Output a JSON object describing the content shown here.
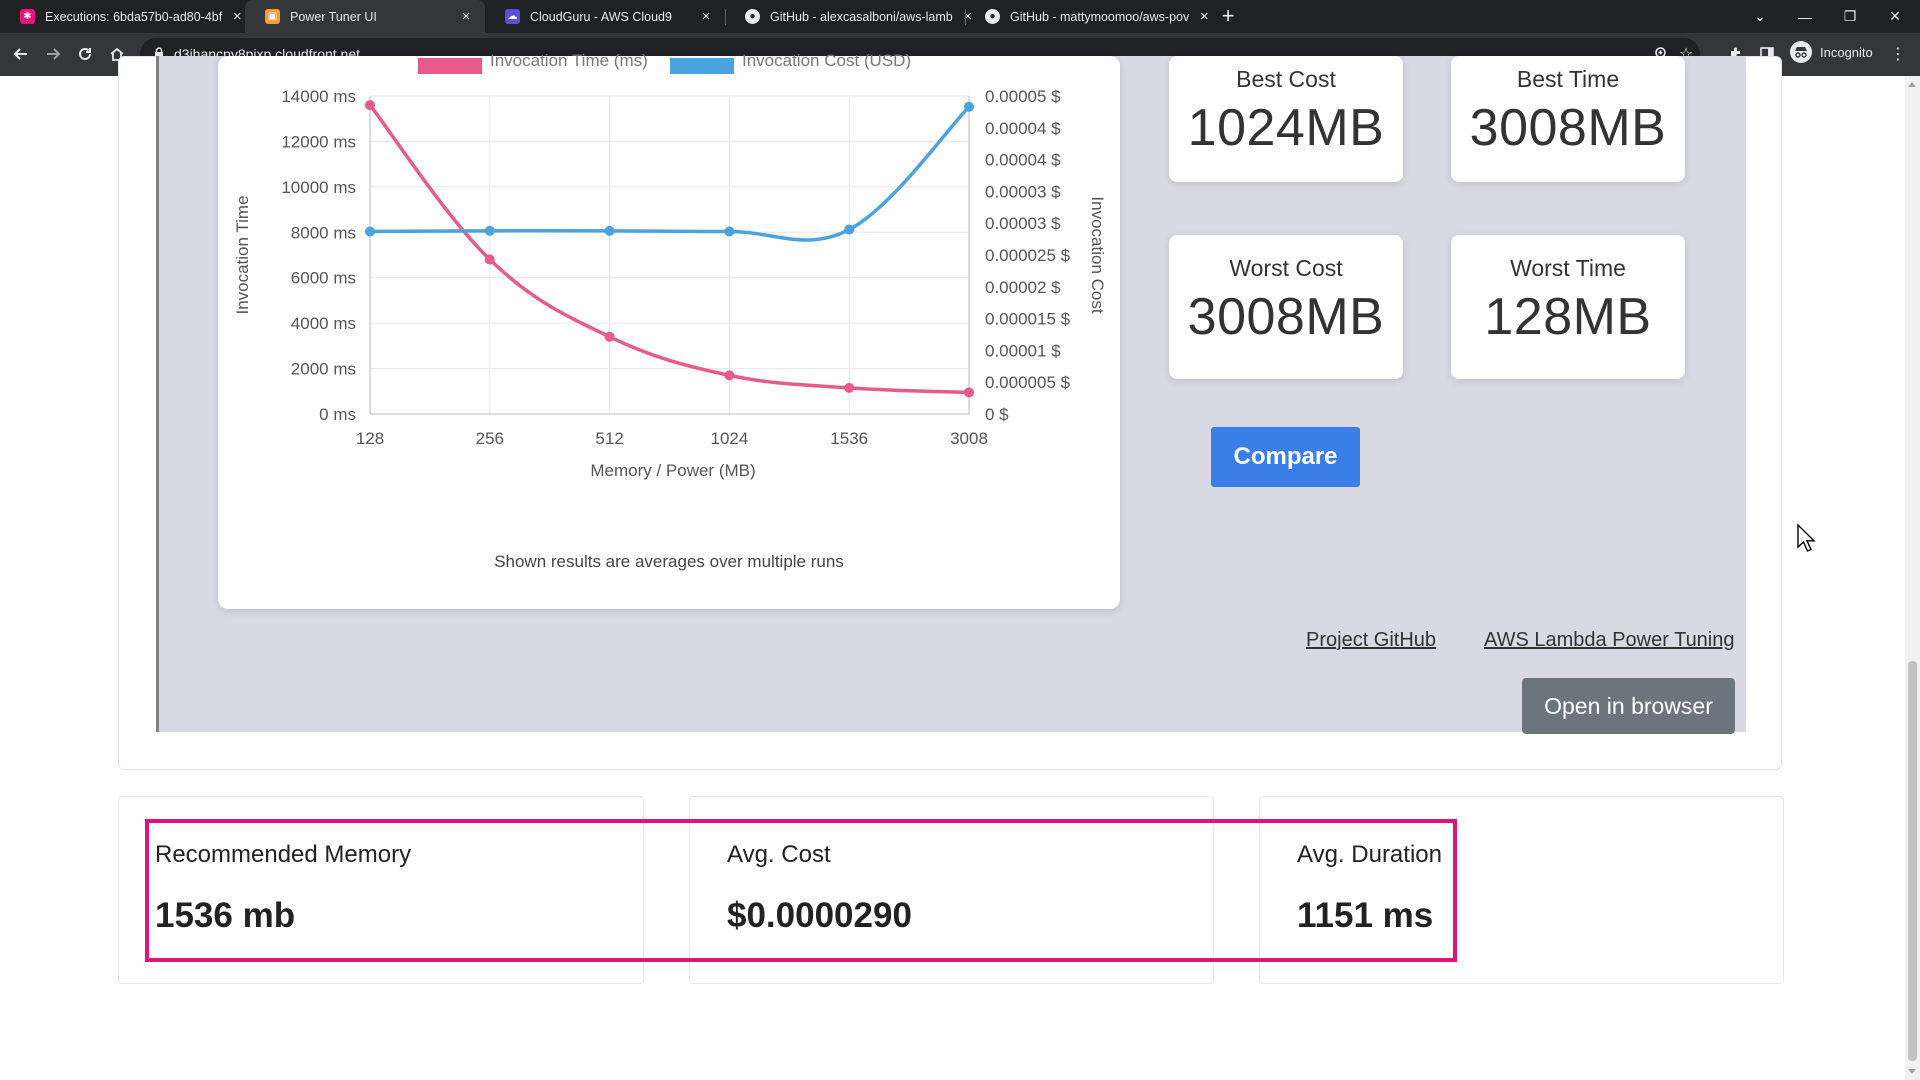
{
  "browser": {
    "tabs": [
      {
        "title": "Executions: 6bda57b0-ad80-4bf",
        "favicon": "step-functions-icon",
        "active": false
      },
      {
        "title": "Power Tuner UI",
        "favicon": "aws-box-icon",
        "active": true
      },
      {
        "title": "CloudGuru - AWS Cloud9",
        "favicon": "cloud9-icon",
        "active": false
      },
      {
        "title": "GitHub - alexcasalboni/aws-lamb",
        "favicon": "github-icon",
        "active": false
      },
      {
        "title": "GitHub - mattymoomoo/aws-pov",
        "favicon": "github-icon",
        "active": false
      }
    ],
    "url": "d3jhancpy8pjxp.cloudfront.net",
    "profile_label": "Incognito"
  },
  "chart_data": {
    "type": "line",
    "legend": [
      "Invocation Time (ms)",
      "Invocation Cost (USD)"
    ],
    "x": [
      "128",
      "256",
      "512",
      "1024",
      "1536",
      "3008"
    ],
    "xlabel": "Memory / Power (MB)",
    "ylabel_left": "Invocation Time",
    "ylabel_right": "Invocation Cost",
    "y_left_ticks": [
      "14000 ms",
      "12000 ms",
      "10000 ms",
      "8000 ms",
      "6000 ms",
      "4000 ms",
      "2000 ms",
      "0 ms"
    ],
    "y_right_ticks": [
      "0.00005 $",
      "0.00004 $",
      "0.00004 $",
      "0.00003 $",
      "0.00003 $",
      "0.000025 $",
      "0.00002 $",
      "0.000015 $",
      "0.00001 $",
      "0.000005 $",
      "0 $"
    ],
    "ylim_left": [
      0,
      14000
    ],
    "ylim_right": [
      0,
      5e-05
    ],
    "series": [
      {
        "name": "Invocation Time (ms)",
        "color": "#e8598c",
        "axis": "left",
        "values": [
          13600,
          6800,
          3400,
          1700,
          1150,
          950
        ]
      },
      {
        "name": "Invocation Cost (USD)",
        "color": "#4aa3df",
        "axis": "right",
        "values": [
          2.87e-05,
          2.88e-05,
          2.88e-05,
          2.87e-05,
          2.9e-05,
          4.83e-05
        ]
      }
    ],
    "note": "Shown results are averages over multiple runs"
  },
  "stats": {
    "best_cost": {
      "label": "Best Cost",
      "value": "1024MB"
    },
    "best_time": {
      "label": "Best Time",
      "value": "3008MB"
    },
    "worst_cost": {
      "label": "Worst Cost",
      "value": "3008MB"
    },
    "worst_time": {
      "label": "Worst Time",
      "value": "128MB"
    }
  },
  "compare_label": "Compare",
  "links": {
    "github": "Project GitHub",
    "power_tuning": "AWS Lambda Power Tuning"
  },
  "open_in_browser_label": "Open in browser",
  "metrics": {
    "memory": {
      "label": "Recommended Memory",
      "value": "1536 mb"
    },
    "cost": {
      "label": "Avg. Cost",
      "value": "$0.0000290"
    },
    "duration": {
      "label": "Avg. Duration",
      "value": "1151 ms"
    }
  },
  "colors": {
    "highlight": "#e0137a",
    "compare": "#3a7fe8",
    "time_series": "#e8598c",
    "cost_series": "#4aa3df"
  }
}
